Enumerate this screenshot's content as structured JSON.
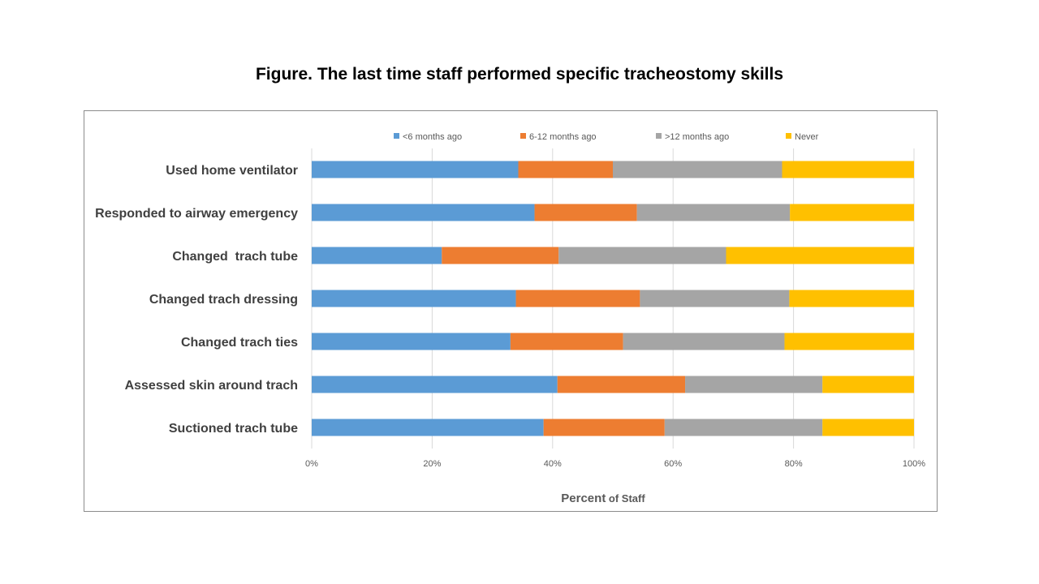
{
  "figure_title": "Figure. The last time staff performed specific tracheostomy skills",
  "chart_data": {
    "type": "bar",
    "orientation": "horizontal",
    "stacked": "percent",
    "categories": [
      "Used home ventilator",
      "Responded to airway emergency",
      "Changed  trach tube",
      "Changed trach dressing",
      "Changed trach ties",
      "Assessed skin around trach",
      "Suctioned trach tube"
    ],
    "series": [
      {
        "name": "<6 months ago",
        "color": "#5B9BD5",
        "values": [
          34.3,
          37.0,
          21.6,
          33.9,
          33.0,
          40.8,
          38.5
        ]
      },
      {
        "name": "6-12 months ago",
        "color": "#ED7D31",
        "values": [
          15.7,
          17.0,
          19.4,
          20.6,
          18.7,
          21.2,
          20.1
        ]
      },
      {
        "name": ">12 months ago",
        "color": "#A5A5A5",
        "values": [
          28.1,
          25.4,
          27.8,
          24.8,
          26.8,
          22.8,
          26.2
        ]
      },
      {
        "name": "Never",
        "color": "#FFC000",
        "values": [
          21.9,
          20.6,
          31.2,
          20.7,
          21.5,
          15.2,
          15.2
        ]
      }
    ],
    "xlim": [
      0,
      100
    ],
    "xticks": [
      "0%",
      "20%",
      "40%",
      "60%",
      "80%",
      "100%"
    ],
    "xlabel_main": "Percent",
    "xlabel_suffix": " of Staff",
    "ylabel": "",
    "legend": "top",
    "grid": "vertical"
  }
}
